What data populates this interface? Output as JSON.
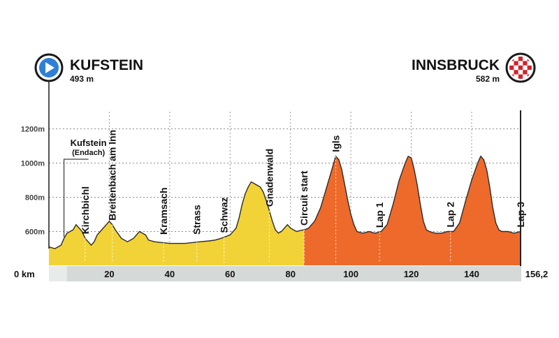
{
  "start": {
    "name": "KUFSTEIN",
    "elevation": "493 m",
    "icon": "play-circle-icon",
    "color": "#2f7fd8"
  },
  "finish": {
    "name": "INNSBRUCK",
    "elevation": "582 m",
    "icon": "checkered-flag-icon",
    "color": "#d3222a"
  },
  "chart_data": {
    "type": "area",
    "title": "",
    "xlabel": "",
    "ylabel": "",
    "x_unit_label": "km",
    "xlim": [
      0,
      156.2
    ],
    "ylim": [
      400,
      1300
    ],
    "x_ticks": [
      {
        "value": 0,
        "label": "0 km"
      },
      {
        "value": 20,
        "label": "20"
      },
      {
        "value": 40,
        "label": "40"
      },
      {
        "value": 60,
        "label": "60"
      },
      {
        "value": 80,
        "label": "80"
      },
      {
        "value": 100,
        "label": "100"
      },
      {
        "value": 120,
        "label": "120"
      },
      {
        "value": 140,
        "label": "140"
      },
      {
        "value": 156.2,
        "label": "156,2"
      }
    ],
    "y_ticks": [
      {
        "value": 600,
        "label": "600m"
      },
      {
        "value": 800,
        "label": "800m"
      },
      {
        "value": 1000,
        "label": "1000m"
      },
      {
        "value": 1200,
        "label": "1200m"
      }
    ],
    "grid": "horizontal dotted",
    "series": [
      {
        "segment": "approach",
        "color": "#f2d337",
        "points": [
          [
            0,
            510
          ],
          [
            2,
            500
          ],
          [
            4,
            520
          ],
          [
            5,
            560
          ],
          [
            6,
            590
          ],
          [
            7,
            600
          ],
          [
            8,
            610
          ],
          [
            9,
            640
          ],
          [
            10,
            620
          ],
          [
            11,
            600
          ],
          [
            12,
            560
          ],
          [
            13,
            540
          ],
          [
            14,
            520
          ],
          [
            15,
            540
          ],
          [
            16,
            580
          ],
          [
            18,
            620
          ],
          [
            20,
            660
          ],
          [
            21,
            640
          ],
          [
            22,
            610
          ],
          [
            24,
            560
          ],
          [
            26,
            540
          ],
          [
            28,
            560
          ],
          [
            30,
            600
          ],
          [
            32,
            580
          ],
          [
            33,
            550
          ],
          [
            35,
            540
          ],
          [
            40,
            530
          ],
          [
            45,
            530
          ],
          [
            50,
            540
          ],
          [
            53,
            545
          ],
          [
            55,
            550
          ],
          [
            57,
            560
          ],
          [
            60,
            580
          ],
          [
            62,
            620
          ],
          [
            63,
            680
          ],
          [
            64,
            760
          ],
          [
            65,
            820
          ],
          [
            66,
            860
          ],
          [
            67,
            890
          ],
          [
            68,
            880
          ],
          [
            69,
            870
          ],
          [
            70,
            860
          ],
          [
            71,
            830
          ],
          [
            72,
            780
          ],
          [
            73,
            720
          ],
          [
            74,
            660
          ],
          [
            75,
            610
          ],
          [
            76,
            590
          ],
          [
            77,
            600
          ],
          [
            78,
            620
          ],
          [
            79,
            640
          ],
          [
            80,
            620
          ],
          [
            81,
            610
          ],
          [
            82,
            600
          ],
          [
            83,
            605
          ],
          [
            84.5,
            610
          ]
        ]
      },
      {
        "segment": "circuit",
        "color": "#ee6a2a",
        "points": [
          [
            84.5,
            610
          ],
          [
            86,
            620
          ],
          [
            88,
            660
          ],
          [
            90,
            740
          ],
          [
            92,
            860
          ],
          [
            94,
            980
          ],
          [
            95,
            1040
          ],
          [
            96,
            1020
          ],
          [
            97,
            960
          ],
          [
            98,
            870
          ],
          [
            99,
            780
          ],
          [
            100,
            700
          ],
          [
            101,
            640
          ],
          [
            102,
            600
          ],
          [
            104,
            590
          ],
          [
            106,
            600
          ],
          [
            108,
            590
          ],
          [
            110,
            600
          ],
          [
            112,
            640
          ],
          [
            114,
            760
          ],
          [
            116,
            900
          ],
          [
            118,
            1000
          ],
          [
            119,
            1040
          ],
          [
            120,
            1030
          ],
          [
            121,
            960
          ],
          [
            122,
            870
          ],
          [
            123,
            760
          ],
          [
            124,
            660
          ],
          [
            125,
            610
          ],
          [
            126,
            600
          ],
          [
            128,
            590
          ],
          [
            130,
            590
          ],
          [
            132,
            600
          ],
          [
            134,
            600
          ],
          [
            136,
            650
          ],
          [
            138,
            780
          ],
          [
            140,
            900
          ],
          [
            142,
            1000
          ],
          [
            143,
            1040
          ],
          [
            144,
            1020
          ],
          [
            145,
            960
          ],
          [
            146,
            860
          ],
          [
            147,
            740
          ],
          [
            148,
            650
          ],
          [
            149,
            610
          ],
          [
            150,
            600
          ],
          [
            152,
            600
          ],
          [
            154,
            590
          ],
          [
            156.2,
            600
          ]
        ]
      }
    ],
    "annotations": [
      {
        "text": "Kufstein",
        "subtext": "(Endach)",
        "x": 5
      },
      {
        "text": "Kirchbichl",
        "x": 12
      },
      {
        "text": "Breitenbach am Inn",
        "x": 21
      },
      {
        "text": "Kramsach",
        "x": 38
      },
      {
        "text": "Strass",
        "x": 49
      },
      {
        "text": "Schwaz",
        "x": 58
      },
      {
        "text": "Gnadenwald",
        "x": 73
      },
      {
        "text": "Circuit start",
        "x": 84.5
      },
      {
        "text": "Igls",
        "x": 95
      },
      {
        "text": "Lap 1",
        "x": 109.5
      },
      {
        "text": "Lap 2",
        "x": 133
      },
      {
        "text": "Lap 3",
        "x": 156.2
      }
    ]
  }
}
